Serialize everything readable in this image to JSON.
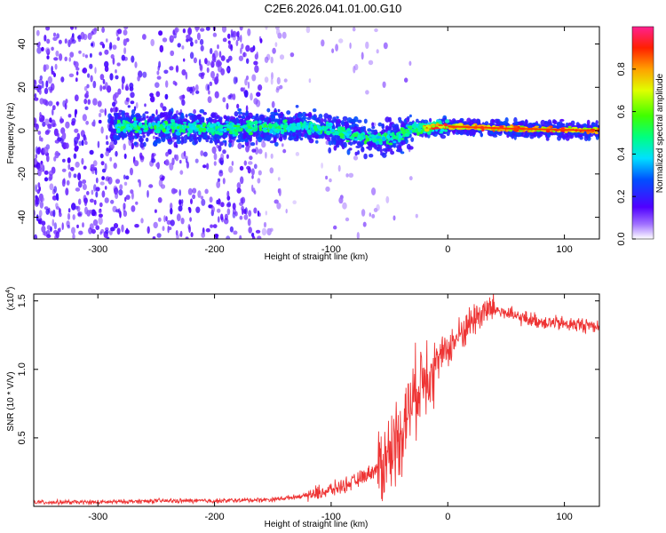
{
  "chart_data": [
    {
      "type": "heatmap",
      "title": "C2E6.2026.041.01.00.G10",
      "xlabel": "Height of straight line (km)",
      "ylabel": "Frequency (Hz)",
      "xlim": [
        -355,
        130
      ],
      "ylim": [
        -50,
        48
      ],
      "x_ticks": [
        -300,
        -200,
        -100,
        0,
        100
      ],
      "y_ticks": [
        40,
        20,
        0,
        -20,
        -40
      ],
      "colorbar": {
        "label": "Normalized spectral amplitude",
        "range": [
          0.0,
          1.0
        ],
        "ticks": [
          0.0,
          0.2,
          0.4,
          0.6,
          0.8
        ]
      },
      "ridge_center_hz": {
        "x": [
          -280,
          -200,
          -120,
          -80,
          -60,
          -45,
          -30,
          0,
          50,
          130
        ],
        "y": [
          2,
          1,
          2,
          -2,
          -4,
          -3,
          1,
          2,
          1,
          0
        ]
      }
    },
    {
      "type": "line",
      "xlabel": "Height of straight line (km)",
      "ylabel": "SNR (10 * V/V)",
      "y_multiplier": "(x10",
      "y_multiplier_exp": "4",
      "y_multiplier_close": ")",
      "xlim": [
        -355,
        130
      ],
      "ylim": [
        0.0,
        1.55
      ],
      "x_ticks": [
        -300,
        -200,
        -100,
        0,
        100
      ],
      "y_ticks": [
        0.5,
        1.0,
        1.5
      ],
      "series": [
        {
          "name": "SNR",
          "color": "#ee3333",
          "x": [
            -355,
            -300,
            -250,
            -200,
            -150,
            -120,
            -100,
            -80,
            -60,
            -50,
            -40,
            -30,
            -20,
            -10,
            0,
            10,
            20,
            30,
            40,
            60,
            80,
            100,
            130
          ],
          "y": [
            0.03,
            0.03,
            0.04,
            0.04,
            0.05,
            0.08,
            0.12,
            0.18,
            0.28,
            0.38,
            0.55,
            0.78,
            0.98,
            1.05,
            1.15,
            1.25,
            1.35,
            1.42,
            1.44,
            1.38,
            1.35,
            1.33,
            1.32
          ]
        }
      ]
    }
  ]
}
